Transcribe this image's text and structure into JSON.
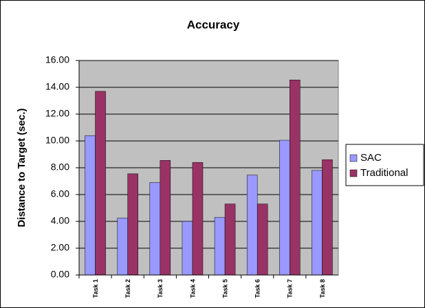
{
  "chart_data": {
    "type": "bar",
    "title": "Accuracy",
    "y_label": "Distance to Target (sec.)",
    "categories": [
      "Task 1",
      "Task 2",
      "Task 3",
      "Task 4",
      "Task 5",
      "Task 6",
      "Task 7",
      "Task 8"
    ],
    "series": [
      {
        "name": "SAC",
        "color": "#9999ff",
        "values": [
          10.4,
          4.25,
          6.9,
          4.0,
          4.3,
          7.45,
          10.05,
          7.8
        ]
      },
      {
        "name": "Traditional",
        "color": "#993366",
        "values": [
          13.7,
          7.55,
          8.55,
          8.4,
          5.3,
          5.3,
          14.55,
          8.6
        ]
      }
    ],
    "ylim": [
      0,
      16
    ],
    "yticks": [
      {
        "value": 0,
        "label": "0.00"
      },
      {
        "value": 2,
        "label": "2.00"
      },
      {
        "value": 4,
        "label": "4.00"
      },
      {
        "value": 6,
        "label": "6.00"
      },
      {
        "value": 8,
        "label": "8.00"
      },
      {
        "value": 10,
        "label": "10.00"
      },
      {
        "value": 12,
        "label": "12.00"
      },
      {
        "value": 14,
        "label": "14.00"
      },
      {
        "value": 16,
        "label": "16.00"
      }
    ],
    "grid": true,
    "legend": "right",
    "plot_background": "#c0c0c0"
  }
}
